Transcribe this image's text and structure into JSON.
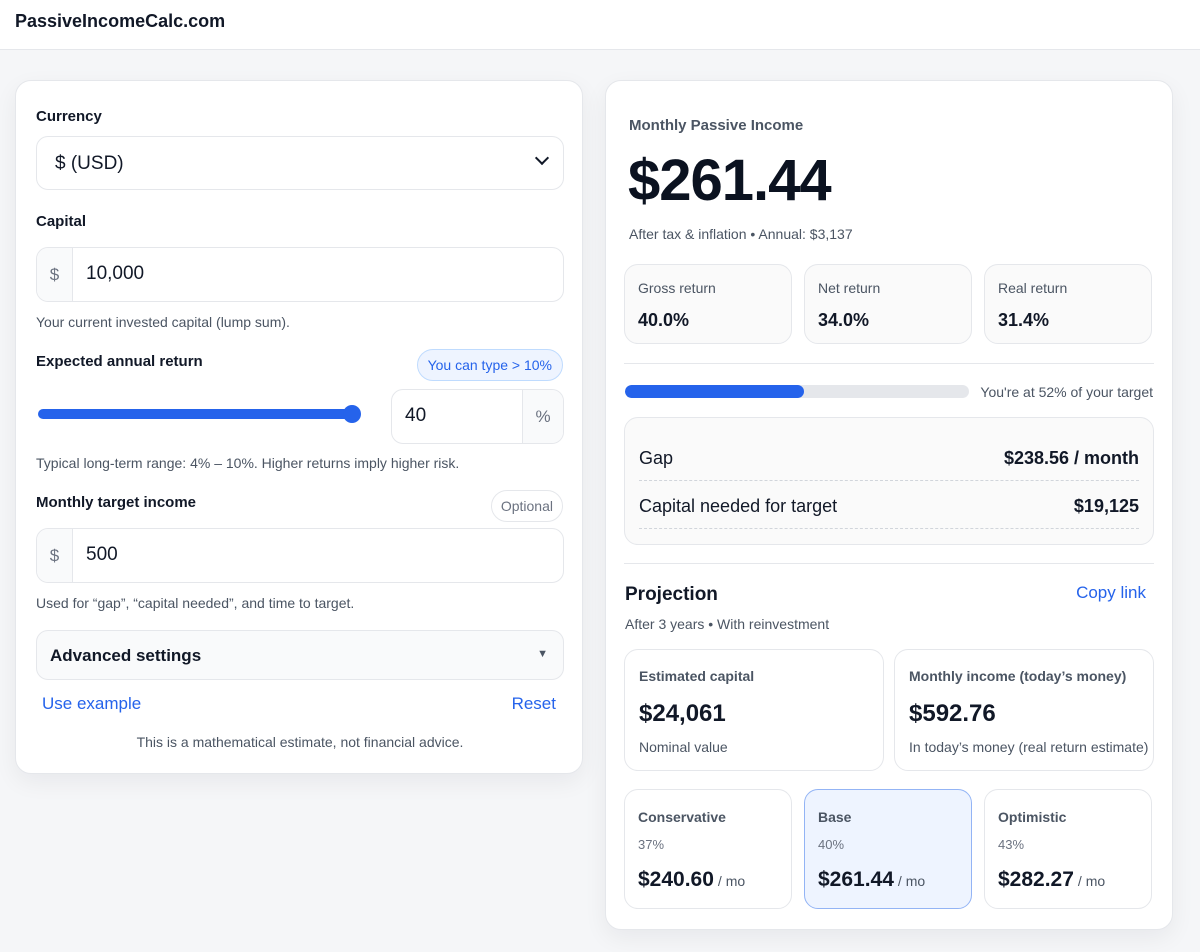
{
  "header": {
    "brand": "PassiveIncomeCalc.com"
  },
  "form": {
    "currency": {
      "label": "Currency",
      "value": "$ (USD)"
    },
    "capital": {
      "label": "Capital",
      "prefix": "$",
      "value": "10,000",
      "help": "Your current invested capital (lump sum)."
    },
    "annual_return": {
      "label": "Expected annual return",
      "badge": "You can type > 10%",
      "value": "40",
      "suffix": "%",
      "slider_fraction": 1.0,
      "help": "Typical long-term range: 4% – 10%. Higher returns imply higher risk."
    },
    "target": {
      "label": "Monthly target income",
      "badge": "Optional",
      "prefix": "$",
      "value": "500",
      "help": "Used for “gap”, “capital needed”, and time to target."
    },
    "advanced_label": "Advanced settings",
    "use_example": "Use example",
    "reset": "Reset",
    "disclaimer": "This is a mathematical estimate, not financial advice."
  },
  "results": {
    "title": "Monthly Passive Income",
    "amount": "$261.44",
    "note": "After tax & inflation • Annual: $3,137",
    "stats": [
      {
        "label": "Gross return",
        "value": "40.0%"
      },
      {
        "label": "Net return",
        "value": "34.0%"
      },
      {
        "label": "Real return",
        "value": "31.4%"
      }
    ],
    "progress": {
      "percent": 52,
      "text": "You're at 52% of your target"
    },
    "gap": {
      "label": "Gap",
      "value": "$238.56 / month"
    },
    "capital_needed": {
      "label": "Capital needed for target",
      "value": "$19,125"
    }
  },
  "projection": {
    "title": "Projection",
    "copy_link": "Copy link",
    "subtitle": "After 3 years • With reinvestment",
    "estimated_capital": {
      "label": "Estimated capital",
      "value": "$24,061",
      "note": "Nominal value"
    },
    "monthly_income": {
      "label": "Monthly income (today’s money)",
      "value": "$592.76",
      "note": "In today’s money (real return estimate)"
    },
    "scenarios": [
      {
        "label": "Conservative",
        "rate": "37%",
        "value": "$240.60",
        "unit": "/ mo"
      },
      {
        "label": "Base",
        "rate": "40%",
        "value": "$261.44",
        "unit": "/ mo"
      },
      {
        "label": "Optimistic",
        "rate": "43%",
        "value": "$282.27",
        "unit": "/ mo"
      }
    ]
  },
  "colors": {
    "accent": "#2563eb",
    "active_bg": "#eef4ff"
  }
}
